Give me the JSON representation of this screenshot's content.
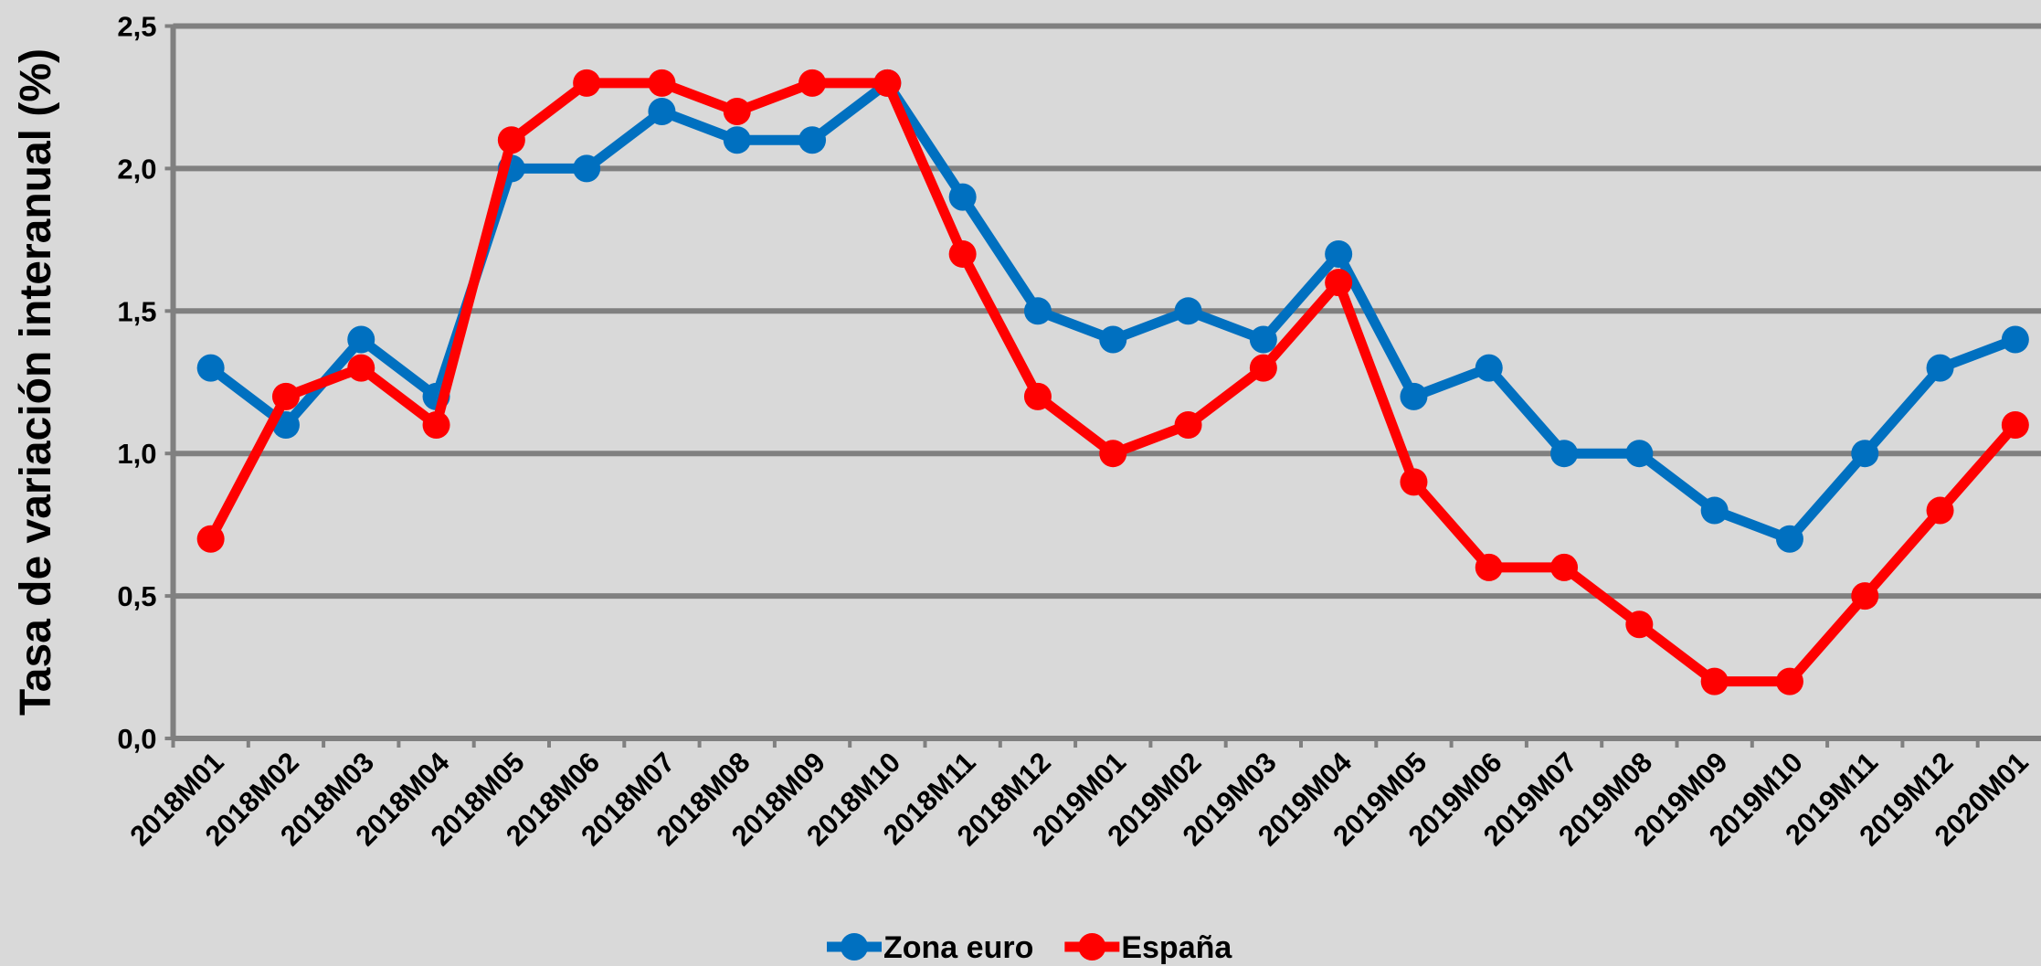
{
  "chart_data": {
    "type": "line",
    "y_label": "Tasa de variación interanual (%)",
    "categories": [
      "2018M01",
      "2018M02",
      "2018M03",
      "2018M04",
      "2018M05",
      "2018M06",
      "2018M07",
      "2018M08",
      "2018M09",
      "2018M10",
      "2018M11",
      "2018M12",
      "2019M01",
      "2019M02",
      "2019M03",
      "2019M04",
      "2019M05",
      "2019M06",
      "2019M07",
      "2019M08",
      "2019M09",
      "2019M10",
      "2019M11",
      "2019M12",
      "2020M01"
    ],
    "series": [
      {
        "name": "Zona euro",
        "color": "#0070c0",
        "values": [
          1.3,
          1.1,
          1.4,
          1.2,
          2.0,
          2.0,
          2.2,
          2.1,
          2.1,
          2.3,
          1.9,
          1.5,
          1.4,
          1.5,
          1.4,
          1.7,
          1.2,
          1.3,
          1.0,
          1.0,
          0.8,
          0.7,
          1.0,
          1.3,
          1.4
        ]
      },
      {
        "name": "España",
        "color": "#ff0000",
        "values": [
          0.7,
          1.2,
          1.3,
          1.1,
          2.1,
          2.3,
          2.3,
          2.2,
          2.3,
          2.3,
          1.7,
          1.2,
          1.0,
          1.1,
          1.3,
          1.6,
          0.9,
          0.6,
          0.6,
          0.4,
          0.2,
          0.2,
          0.5,
          0.8,
          1.1
        ]
      }
    ],
    "ylim": [
      0,
      2.5
    ],
    "yticks": [
      {
        "value": 0,
        "label": "0,0"
      },
      {
        "value": 0.5,
        "label": "0,5"
      },
      {
        "value": 1,
        "label": "1,0"
      },
      {
        "value": 1.5,
        "label": "1,5"
      },
      {
        "value": 2,
        "label": "2,0"
      },
      {
        "value": 2.5,
        "label": "2,5"
      }
    ],
    "grid": true,
    "legend": "bottom"
  }
}
